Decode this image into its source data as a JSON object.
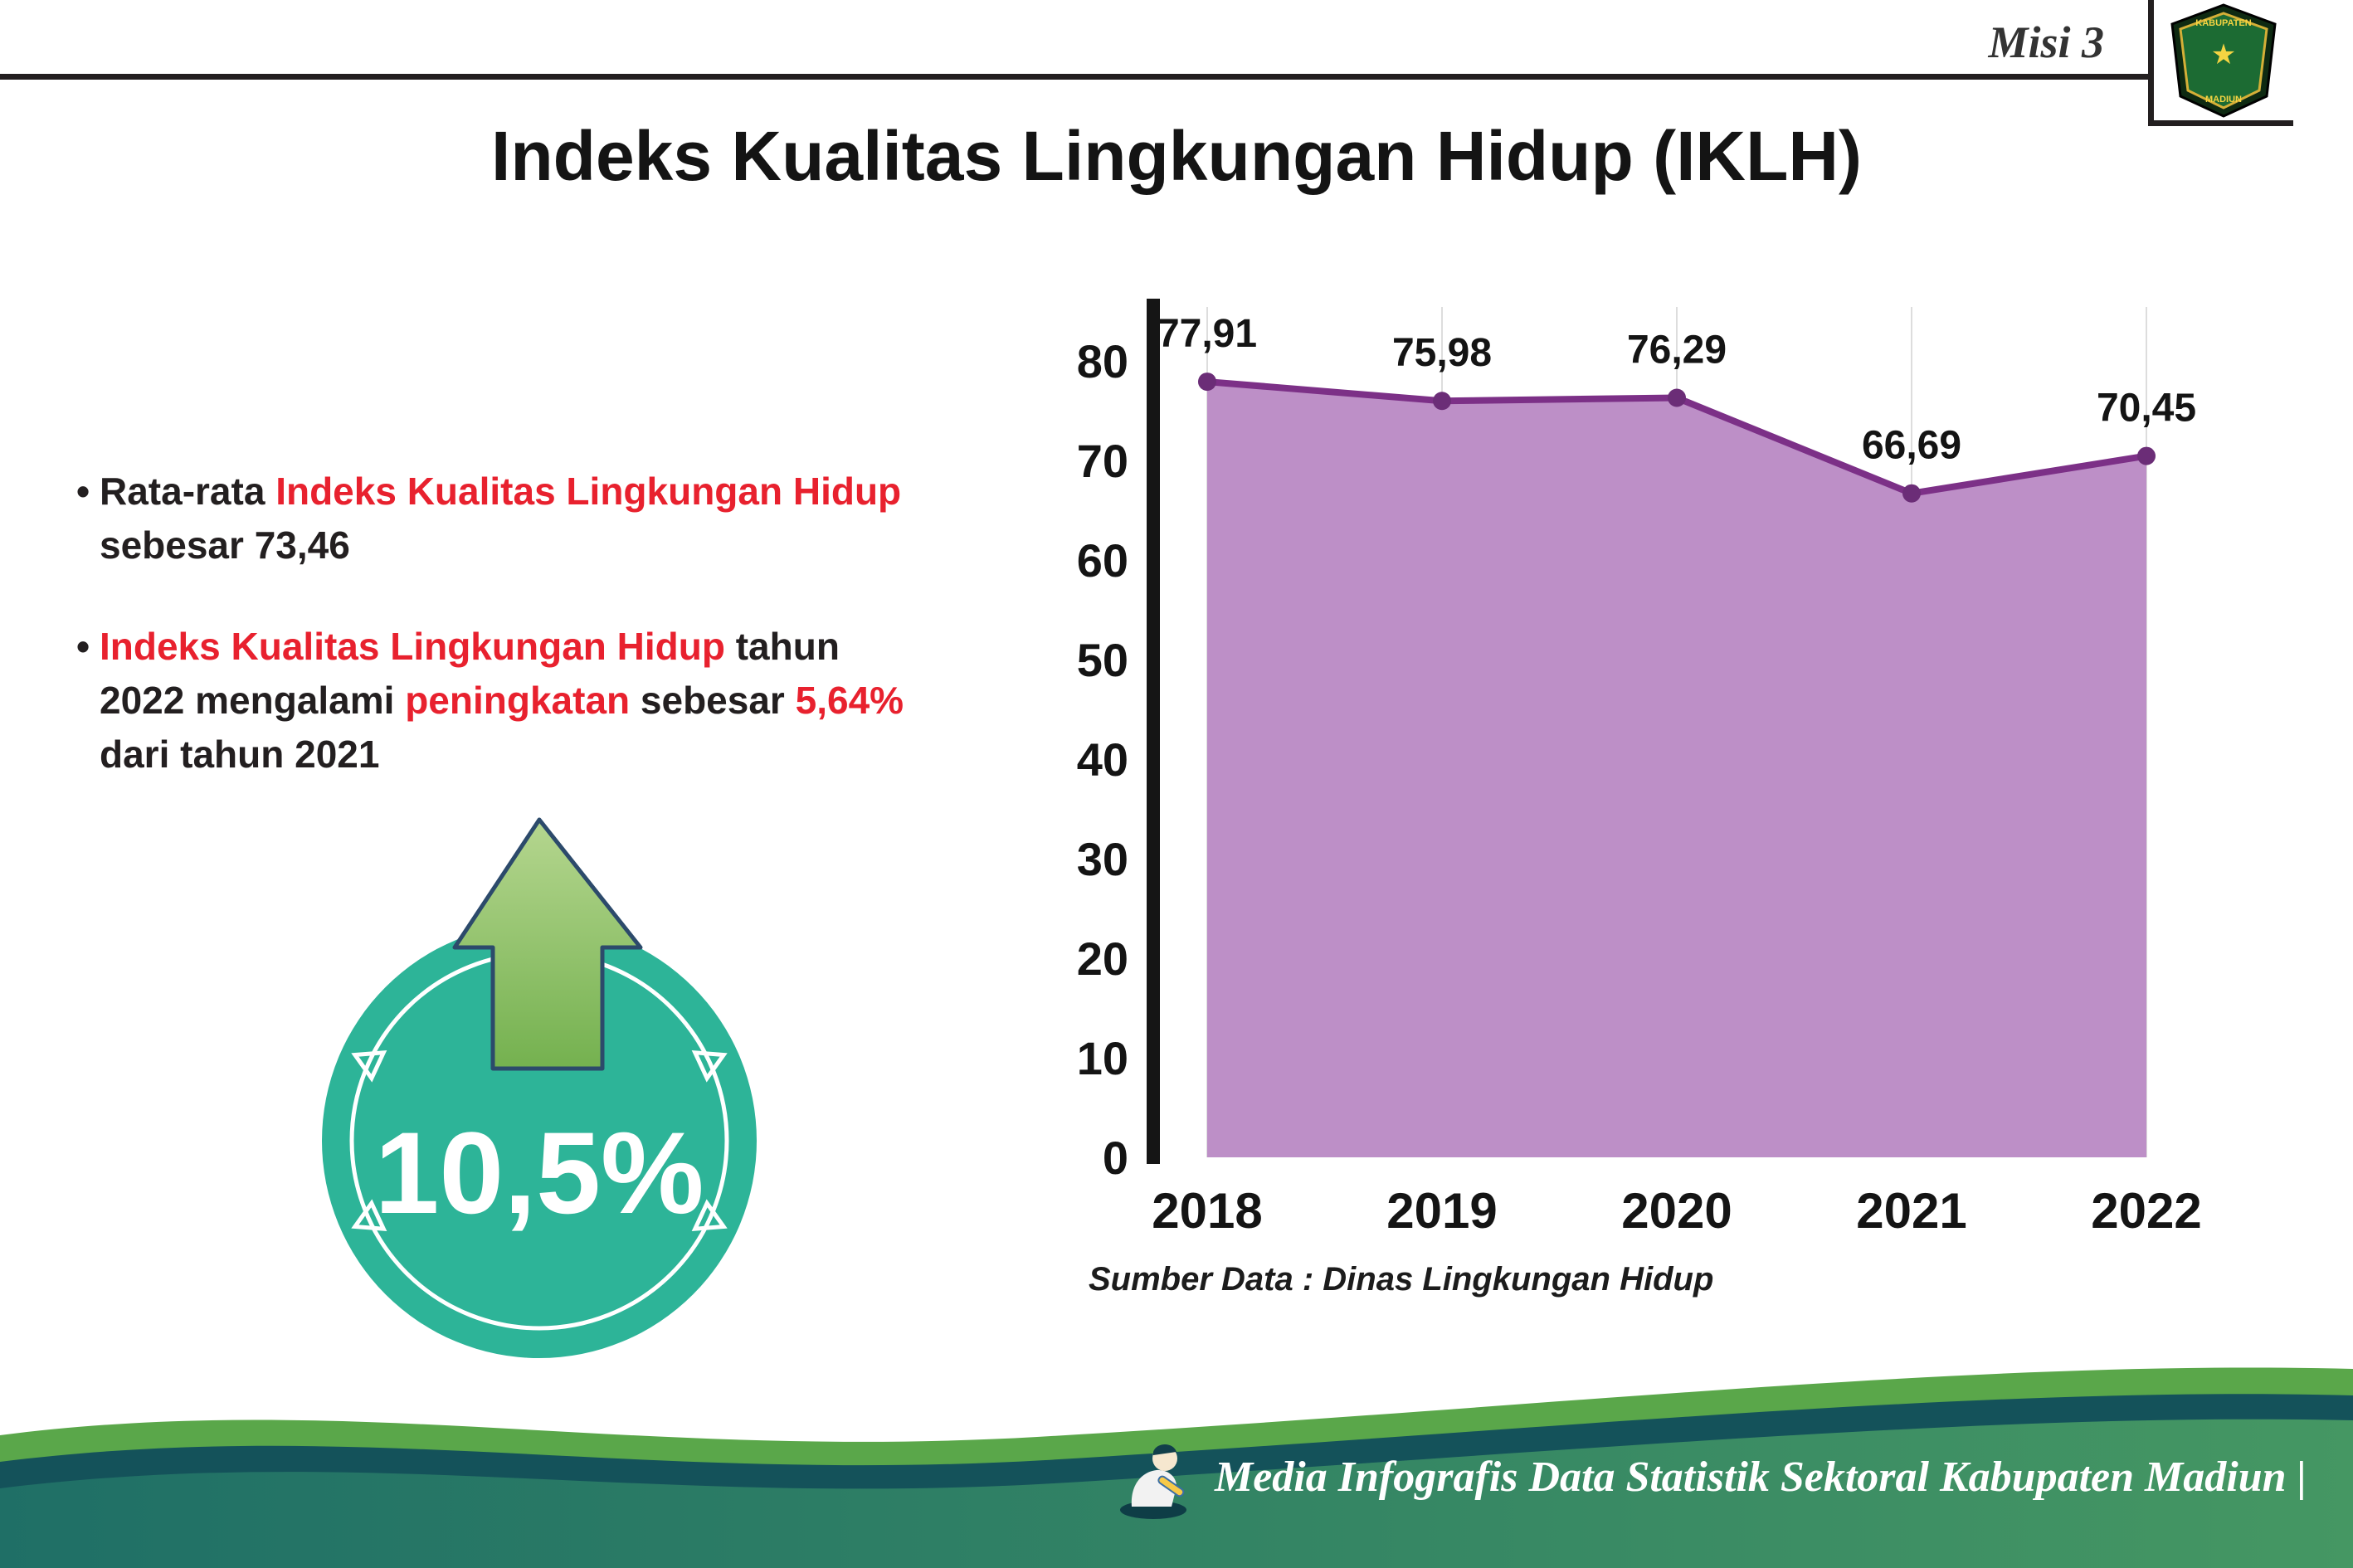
{
  "header": {
    "misi_label": "Misi 3",
    "logo": {
      "line1": "KABUPATEN",
      "line2": "MADIUN"
    }
  },
  "title": "Indeks Kualitas Lingkungan Hidup (IKLH)",
  "colors": {
    "accent_red": "#e8212e",
    "text_dark": "#231f20"
  },
  "bullets": [
    {
      "segments": [
        {
          "text": "Rata-rata ",
          "style": "dark"
        },
        {
          "text": "Indeks Kualitas Lingkungan Hidup",
          "style": "red"
        },
        {
          "text": " sebesar 73,46",
          "style": "dark"
        }
      ]
    },
    {
      "segments": [
        {
          "text": "Indeks Kualitas Lingkungan Hidup",
          "style": "red"
        },
        {
          "text": " tahun 2022 mengalami ",
          "style": "dark"
        },
        {
          "text": "peningkatan",
          "style": "red"
        },
        {
          "text": " sebesar ",
          "style": "dark"
        },
        {
          "text": "5,64%",
          "style": "red"
        },
        {
          "text": " dari tahun 2021",
          "style": "dark"
        }
      ]
    }
  ],
  "badge": {
    "value": "10,5%",
    "circle_color": "#2db498",
    "arrow_color_top": "#b5d68f",
    "arrow_color_bottom": "#74b14f"
  },
  "chart_data": {
    "type": "area",
    "title": "",
    "categories": [
      "2018",
      "2019",
      "2020",
      "2021",
      "2022"
    ],
    "values": [
      77.91,
      75.98,
      76.29,
      66.69,
      70.45
    ],
    "value_labels": [
      "77,91",
      "75,98",
      "76,29",
      "66,69",
      "70,45"
    ],
    "xlabel": "",
    "ylabel": "",
    "ylim": [
      0,
      80
    ],
    "ytick_step": 10,
    "grid": true,
    "legend": "none",
    "source": "Sumber Data : Dinas Lingkungan Hidup",
    "colors": {
      "area_fill": "#bd8fc7",
      "line": "#7c3087",
      "marker": "#6b2d77",
      "label": "#141414"
    }
  },
  "footer": {
    "text": "Media Infografis Data Statistik Sektoral Kabupaten Madiun |",
    "wave_green": "#5aa74a",
    "wave_dark": "#14525a",
    "band_teal_left": "#1f6f66",
    "band_green_right": "#459763"
  }
}
